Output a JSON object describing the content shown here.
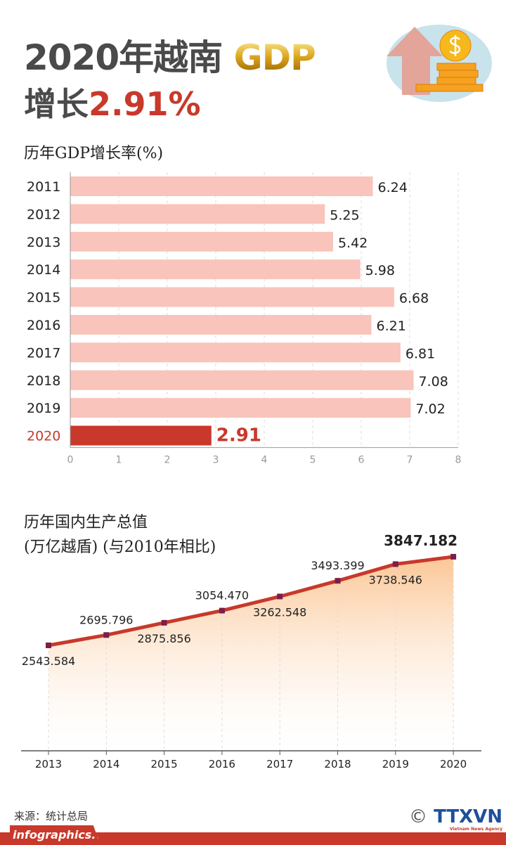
{
  "header": {
    "title_prefix": "2020年越南",
    "title_gdp": "GDP",
    "subtitle_prefix": "增长",
    "subtitle_value": "2.91%"
  },
  "chart_data": [
    {
      "type": "bar",
      "orientation": "horizontal",
      "title": "历年GDP增长率(%)",
      "categories": [
        "2011",
        "2012",
        "2013",
        "2014",
        "2015",
        "2016",
        "2017",
        "2018",
        "2019",
        "2020"
      ],
      "values": [
        6.24,
        5.25,
        5.42,
        5.98,
        6.68,
        6.21,
        6.81,
        7.08,
        7.02,
        2.91
      ],
      "value_labels": [
        "6.24",
        "5.25",
        "5.42",
        "5.98",
        "6.68",
        "6.21",
        "6.81",
        "7.08",
        "7.02",
        "2.91"
      ],
      "xlim": [
        0,
        8
      ],
      "xticks": [
        "0",
        "1",
        "2",
        "3",
        "4",
        "5",
        "6",
        "7",
        "8"
      ],
      "grid": true,
      "colors": {
        "bar": "#f9c4bb",
        "highlight": "#c8392b"
      }
    },
    {
      "type": "area",
      "title": "历年国内生产总值",
      "subtitle": "(万亿越盾) (与2010年相比)",
      "categories": [
        "2013",
        "2014",
        "2015",
        "2016",
        "2017",
        "2018",
        "2019",
        "2020"
      ],
      "values": [
        2543.584,
        2695.796,
        2875.856,
        3054.47,
        3262.548,
        3493.399,
        3738.546,
        3847.182
      ],
      "value_labels": [
        "2543.584",
        "2695.796",
        "2875.856",
        "3054.470",
        "3262.548",
        "3493.399",
        "3738.546",
        "3847.182"
      ],
      "colors": {
        "line": "#c8392b",
        "marker": "#7a1f4a",
        "fill": "#fbc08a"
      }
    }
  ],
  "footer": {
    "source": "来源：统计总局",
    "site": "infographics.vn",
    "logo": "TTXVN",
    "logo_sub": "Vietnam News Agency",
    "copyright": "©"
  }
}
